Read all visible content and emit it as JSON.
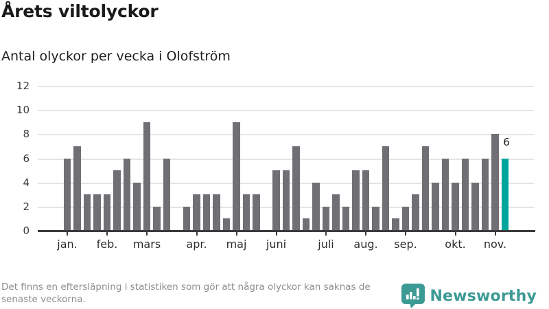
{
  "header": {
    "title": "Årets viltolyckor",
    "subtitle": "Antal olyckor per vecka i Olofström"
  },
  "chart_data": {
    "type": "bar",
    "title": "Årets viltolyckor",
    "subtitle": "Antal olyckor per vecka i Olofström",
    "description": "Number of wildlife accidents per week, one bar per week from early January to mid November; last week highlighted in teal with a data label",
    "xlabel": "",
    "ylabel": "",
    "ylim": [
      0,
      12
    ],
    "yticks": [
      0,
      2,
      4,
      6,
      8,
      10,
      12
    ],
    "grid": "horizontal",
    "values": [
      6,
      7,
      3,
      3,
      3,
      5,
      6,
      4,
      9,
      2,
      6,
      0,
      2,
      3,
      3,
      3,
      1,
      9,
      3,
      3,
      0,
      5,
      5,
      7,
      1,
      4,
      2,
      3,
      2,
      5,
      5,
      2,
      7,
      1,
      2,
      3,
      7,
      4,
      6,
      4,
      6,
      4,
      6,
      8,
      6
    ],
    "month_ticks": [
      {
        "label": "jan.",
        "slot": 0
      },
      {
        "label": "feb.",
        "slot": 4
      },
      {
        "label": "mars",
        "slot": 8
      },
      {
        "label": "apr.",
        "slot": 13
      },
      {
        "label": "maj",
        "slot": 17
      },
      {
        "label": "juni",
        "slot": 21
      },
      {
        "label": "juli",
        "slot": 26
      },
      {
        "label": "aug.",
        "slot": 30
      },
      {
        "label": "sep.",
        "slot": 34
      },
      {
        "label": "okt.",
        "slot": 39
      },
      {
        "label": "nov.",
        "slot": 43
      }
    ],
    "last_value_label": "6",
    "bar_color": "#6F6F74",
    "highlight_color": "#00A69C",
    "gridline_color": "#e4e4e4",
    "axis_color": "#3b3b3b"
  },
  "footer": {
    "note_line1": "Det finns en eftersläpning i statistiken som gör att några olyckor kan saknas de",
    "note_line2": "senaste veckorna.",
    "brand": "Newsworthy",
    "brand_color": "#3C9A95"
  }
}
